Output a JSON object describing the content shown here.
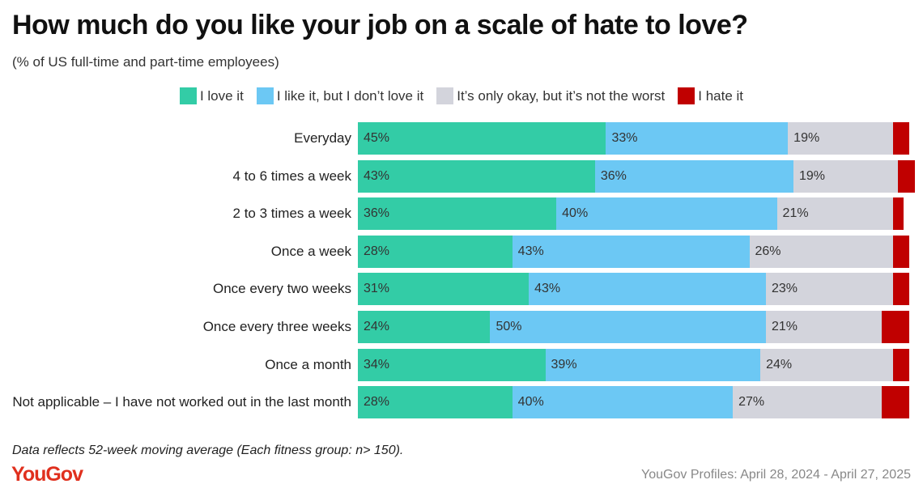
{
  "chart_data": {
    "type": "stacked-barh",
    "title": "How much do you like your job on a scale of hate to love?",
    "subtitle": "(% of US full-time and part-time employees)",
    "categories": [
      "Everyday",
      "4 to 6 times a week",
      "2 to 3 times a week",
      "Once a week",
      "Once every two weeks",
      "Once every three weeks",
      "Once a month",
      "Not applicable – I have not worked out in the last month"
    ],
    "xlim": [
      0,
      100
    ],
    "series": [
      {
        "name": "I love it",
        "color": "#33cca6",
        "values": [
          45,
          43,
          36,
          28,
          31,
          24,
          34,
          28
        ],
        "value_labels": [
          "45%",
          "43%",
          "36%",
          "28%",
          "31%",
          "24%",
          "34%",
          "28%"
        ]
      },
      {
        "name": "I like it, but I don’t love it",
        "color": "#6cc8f4",
        "values": [
          33,
          36,
          40,
          43,
          43,
          50,
          39,
          40
        ],
        "value_labels": [
          "33%",
          "36%",
          "40%",
          "43%",
          "43%",
          "50%",
          "39%",
          "40%"
        ]
      },
      {
        "name": "It’s only okay, but it’s not the worst",
        "color": "#d3d4dc",
        "values": [
          19,
          19,
          21,
          26,
          23,
          21,
          24,
          27
        ],
        "value_labels": [
          "19%",
          "19%",
          "21%",
          "26%",
          "23%",
          "21%",
          "24%",
          "27%"
        ]
      },
      {
        "name": "I hate it",
        "color": "#c00000",
        "values": [
          3,
          3,
          2,
          3,
          3,
          5,
          3,
          5
        ]
      }
    ]
  },
  "note": "Data reflects 52-week moving average (Each fitness group: n> 150).",
  "brand": "YouGov",
  "source": "YouGov Profiles: April 28, 2024 - April 27, 2025"
}
